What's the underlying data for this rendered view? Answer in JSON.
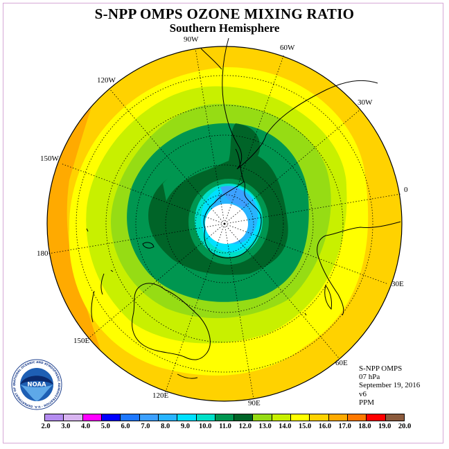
{
  "header": {
    "title": "S-NPP OMPS OZONE MIXING RATIO",
    "subtitle": "Southern Hemisphere"
  },
  "longitude_labels": [
    "90W",
    "60W",
    "30W",
    "0",
    "30E",
    "60E",
    "90E",
    "120E",
    "150E",
    "180",
    "150W",
    "120W"
  ],
  "info": {
    "instrument": "S-NPP OMPS",
    "level": "07 hPa",
    "date": "September 19, 2016",
    "version": "v6",
    "units": "PPM"
  },
  "logo": {
    "icon": "noaa-logo-icon",
    "text": "NOAA",
    "ring_text": "NATIONAL OCEANIC AND ATMOSPHERIC ADMINISTRATION · U.S. DEPARTMENT OF COMMERCE"
  },
  "colorbar": {
    "ticks": [
      "2.0",
      "3.0",
      "4.0",
      "5.0",
      "6.0",
      "7.0",
      "8.0",
      "9.0",
      "10.0",
      "11.0",
      "12.0",
      "13.0",
      "14.0",
      "15.0",
      "16.0",
      "17.0",
      "18.0",
      "19.0",
      "20.0"
    ],
    "colors": [
      "#b48cf0",
      "#d8b4f0",
      "#ff00ff",
      "#0000ff",
      "#1e78ff",
      "#3ca0ff",
      "#28b4ff",
      "#00e0ff",
      "#00e0c8",
      "#009650",
      "#006428",
      "#96dc14",
      "#c8f000",
      "#ffff00",
      "#ffd200",
      "#ffaa00",
      "#ff7800",
      "#ff0000",
      "#8b5a3c"
    ]
  }
}
